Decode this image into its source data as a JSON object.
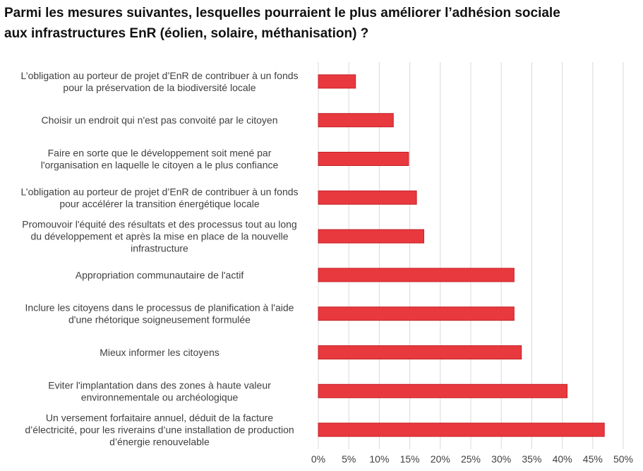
{
  "chart_data": {
    "type": "bar",
    "orientation": "horizontal",
    "title_lines": [
      "Parmi les mesures suivantes, lesquelles pourraient le plus améliorer l’adhésion sociale",
      "aux infrastructures EnR (éolien, solaire, méthanisation) ?"
    ],
    "categories": [
      [
        "L’obligation au porteur de projet d’EnR de contribuer à un fonds",
        "pour la préservation de la biodiversité locale"
      ],
      [
        "Choisir un endroit qui n'est pas convoité par le citoyen"
      ],
      [
        "Faire en sorte que le développement soit mené par",
        "l'organisation en laquelle le citoyen a le plus confiance"
      ],
      [
        "L’obligation au porteur de projet d’EnR de contribuer à un fonds",
        "pour accélérer la transition énergétique locale"
      ],
      [
        "Promouvoir l'équité des résultats et des processus tout au long",
        "du développement et après la mise en place de la nouvelle",
        "infrastructure"
      ],
      [
        "Appropriation communautaire de l'actif"
      ],
      [
        "Inclure les citoyens dans le processus de planification à l'aide",
        "d'une rhétorique soigneusement formulée"
      ],
      [
        "Mieux informer les citoyens"
      ],
      [
        "Eviter l'implantation dans des zones à haute valeur",
        "environnementale ou archéologique"
      ],
      [
        "Un  versement forfaitaire annuel, déduit de la facture",
        "d’électricité, pour les riverains d’une installation de production",
        "d’énergie renouvelable"
      ]
    ],
    "values": [
      6.1,
      12.3,
      14.8,
      16.1,
      17.3,
      32.1,
      32.1,
      33.3,
      40.8,
      46.9
    ],
    "xlim": [
      0,
      50
    ],
    "xticks": [
      "0%",
      "5%",
      "10%",
      "15%",
      "20%",
      "25%",
      "30%",
      "35%",
      "40%",
      "45%",
      "50%"
    ],
    "grid": true,
    "legend": "none",
    "bar_color": "#e8393f",
    "bar_edge_color": "#c42026",
    "grid_color": "#d9d9d9"
  }
}
